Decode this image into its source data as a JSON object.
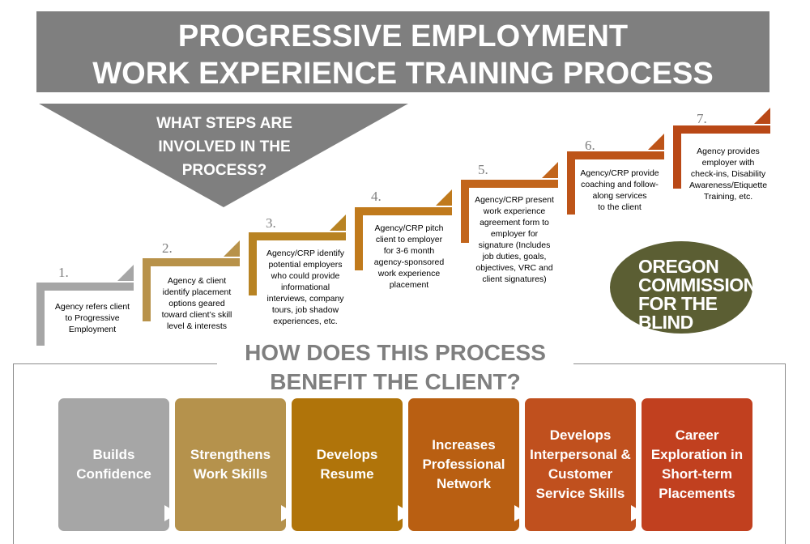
{
  "header": {
    "title_line1": "PROGRESSIVE EMPLOYMENT",
    "title_line2": "WORK EXPERIENCE TRAINING PROCESS"
  },
  "question1": {
    "line1": "WHAT STEPS ARE",
    "line2": "INVOLVED IN THE",
    "line3": "PROCESS?"
  },
  "steps": [
    {
      "number": "1.",
      "lines": [
        "Agency refers client",
        "to Progressive",
        "Employment"
      ],
      "color": "#a6a6a6"
    },
    {
      "number": "2.",
      "lines": [
        "Agency & client",
        "identify placement",
        "options geared",
        "toward client’s skill",
        "level & interests"
      ],
      "color": "#b8924a"
    },
    {
      "number": "3.",
      "lines": [
        "Agency/CRP identify",
        "potential employers",
        "who could provide",
        "informational",
        "interviews, company",
        "tours, job shadow",
        "experiences, etc."
      ],
      "color": "#b88323"
    },
    {
      "number": "4.",
      "lines": [
        "Agency/CRP pitch",
        "client to employer",
        "for 3-6 month",
        "agency-sponsored",
        "work experience",
        "placement"
      ],
      "color": "#c07a1c"
    },
    {
      "number": "5.",
      "lines": [
        "Agency/CRP present",
        "work experience",
        "agreement form to",
        "employer for",
        "signature (Includes",
        "job duties, goals,",
        "objectives, VRC and",
        "client signatures)"
      ],
      "color": "#c2651c"
    },
    {
      "number": "6.",
      "lines": [
        "Agency/CRP provide",
        "coaching and follow-",
        "along services",
        "to the client"
      ],
      "color": "#bd5418"
    },
    {
      "number": "7.",
      "lines": [
        "Agency provides",
        "employer with",
        "check-ins, Disability",
        "Awareness/Etiquette",
        "Training, etc."
      ],
      "color": "#b94816"
    }
  ],
  "logo": {
    "line1": "OREGON",
    "line2": "COMMISSION",
    "line3": "FOR THE",
    "line4": "BLIND",
    "color": "#5b5e33"
  },
  "question2": {
    "line1": "HOW DOES THIS PROCESS",
    "line2": "BENEFIT THE CLIENT?"
  },
  "benefits": [
    {
      "label": "Builds Confidence",
      "color": "#a6a6a6"
    },
    {
      "label": "Strengthens Work Skills",
      "color": "#b5924c"
    },
    {
      "label": "Develops Resume",
      "color": "#b0740a"
    },
    {
      "label": "Increases Professional Network",
      "color": "#b95f12"
    },
    {
      "label": "Develops Interpersonal & Customer Service Skills",
      "color": "#c0501e"
    },
    {
      "label": "Career Exploration in Short-term Placements",
      "color": "#c1401f"
    }
  ]
}
